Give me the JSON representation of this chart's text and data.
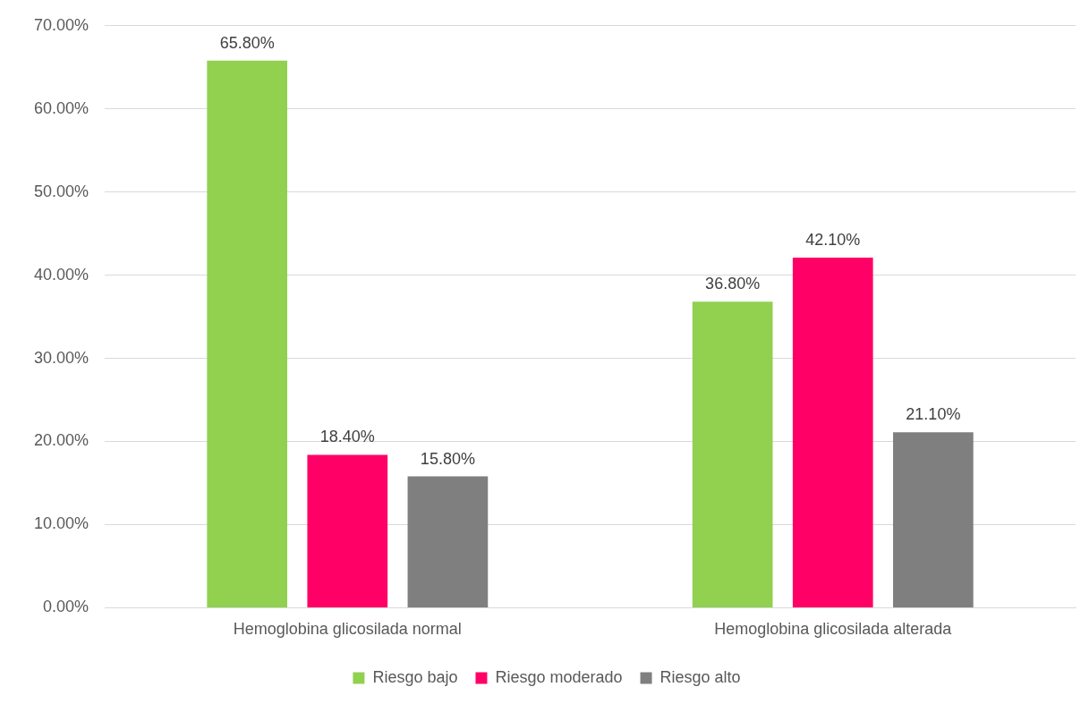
{
  "chart_data": {
    "type": "bar",
    "categories": [
      "Hemoglobina glicosilada normal",
      "Hemoglobina glicosilada alterada"
    ],
    "series": [
      {
        "name": "Riesgo bajo",
        "color": "#92d050",
        "values": [
          65.8,
          36.8
        ],
        "value_labels": [
          "65.80%",
          "36.80%"
        ]
      },
      {
        "name": "Riesgo moderado",
        "color": "#ff0066",
        "values": [
          18.4,
          42.1
        ],
        "value_labels": [
          "18.40%",
          "42.10%"
        ]
      },
      {
        "name": "Riesgo alto",
        "color": "#7f7f7f",
        "values": [
          15.8,
          21.1
        ],
        "value_labels": [
          "15.80%",
          "21.10%"
        ]
      }
    ],
    "ylim": [
      0,
      70
    ],
    "yticks": [
      {
        "value": 0,
        "label": "0.00%"
      },
      {
        "value": 10,
        "label": "10.00%"
      },
      {
        "value": 20,
        "label": "20.00%"
      },
      {
        "value": 30,
        "label": "30.00%"
      },
      {
        "value": 40,
        "label": "40.00%"
      },
      {
        "value": 50,
        "label": "50.00%"
      },
      {
        "value": 60,
        "label": "60.00%"
      },
      {
        "value": 70,
        "label": "70.00%"
      }
    ],
    "grid": "y",
    "legend": "bottom"
  }
}
